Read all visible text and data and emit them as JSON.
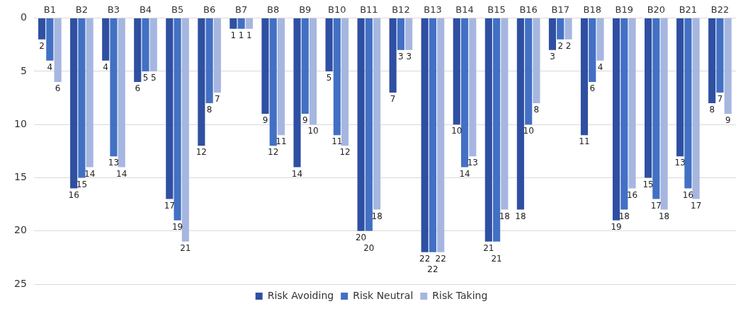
{
  "chart_data": {
    "type": "bar",
    "categories": [
      "B1",
      "B2",
      "B3",
      "B4",
      "B5",
      "B6",
      "B7",
      "B8",
      "B9",
      "B10",
      "B11",
      "B12",
      "B13",
      "B14",
      "B15",
      "B16",
      "B17",
      "B18",
      "B19",
      "B20",
      "B21",
      "B22"
    ],
    "series": [
      {
        "name": "Risk Avoiding",
        "color": "#2f4fa2",
        "values": [
          2,
          16,
          4,
          6,
          17,
          12,
          1,
          9,
          14,
          5,
          20,
          7,
          22,
          10,
          21,
          18,
          3,
          11,
          19,
          15,
          13,
          8
        ]
      },
      {
        "name": "Risk Neutral",
        "color": "#4270c4",
        "values": [
          4,
          15,
          13,
          5,
          19,
          8,
          1,
          12,
          9,
          11,
          20,
          3,
          22,
          14,
          21,
          10,
          2,
          6,
          18,
          17,
          16,
          7
        ]
      },
      {
        "name": "Risk Taking",
        "color": "#a6b6e0",
        "values": [
          6,
          14,
          14,
          5,
          21,
          7,
          1,
          11,
          10,
          12,
          18,
          3,
          22,
          13,
          18,
          8,
          2,
          4,
          16,
          18,
          17,
          9
        ]
      }
    ],
    "ylim": [
      25,
      0
    ],
    "yticks": [
      0,
      5,
      10,
      15,
      20,
      25
    ],
    "grid": "y",
    "legend": "bottom",
    "data_labels": true
  }
}
